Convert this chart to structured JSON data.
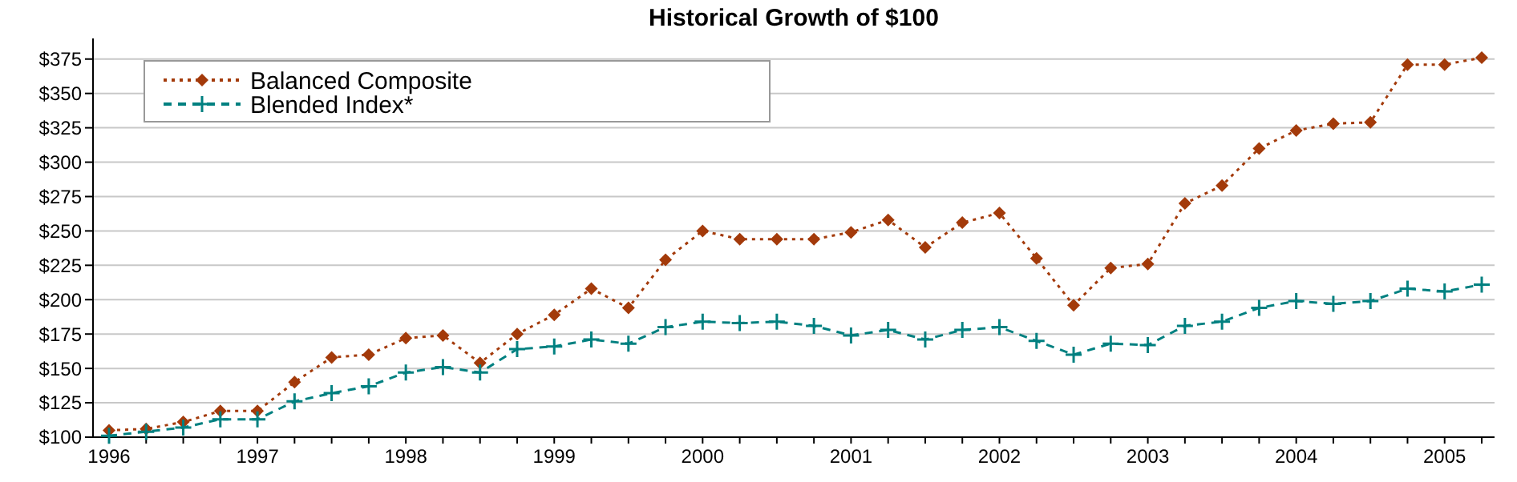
{
  "chart_data": {
    "type": "line",
    "title": "Historical Growth of $100",
    "categories": [
      "1996",
      null,
      null,
      null,
      "1997",
      null,
      null,
      null,
      "1998",
      null,
      null,
      null,
      "1999",
      null,
      null,
      null,
      "2000",
      null,
      null,
      null,
      "2001",
      null,
      null,
      null,
      "2002",
      null,
      null,
      null,
      "2003",
      null,
      null,
      null,
      "2004",
      null,
      null,
      null,
      "2005",
      null
    ],
    "series": [
      {
        "name": "Balanced Composite",
        "color": "#a33a0a",
        "marker": "diamond",
        "line_style": "dotted",
        "values": [
          105,
          106,
          111,
          119,
          119,
          140,
          158,
          160,
          172,
          174,
          154,
          175,
          189,
          208,
          194,
          229,
          250,
          244,
          244,
          244,
          249,
          258,
          238,
          256,
          263,
          230,
          196,
          223,
          226,
          270,
          283,
          310,
          323,
          328,
          329,
          371,
          371,
          376
        ]
      },
      {
        "name": "Blended Index*",
        "color": "#008080",
        "marker": "cross",
        "line_style": "dashed",
        "values": [
          101,
          104,
          107,
          113,
          113,
          126,
          132,
          137,
          147,
          151,
          147,
          164,
          166,
          171,
          168,
          180,
          184,
          183,
          184,
          181,
          174,
          178,
          171,
          178,
          180,
          170,
          160,
          168,
          167,
          181,
          184,
          194,
          199,
          197,
          199,
          208,
          206,
          211
        ]
      }
    ],
    "ylim": [
      100,
      390
    ],
    "yticks": [
      {
        "value": 100,
        "label": "$100"
      },
      {
        "value": 125,
        "label": "$125"
      },
      {
        "value": 150,
        "label": "$150"
      },
      {
        "value": 175,
        "label": "$175"
      },
      {
        "value": 200,
        "label": "$200"
      },
      {
        "value": 225,
        "label": "$225"
      },
      {
        "value": 250,
        "label": "$250"
      },
      {
        "value": 275,
        "label": "$275"
      },
      {
        "value": 300,
        "label": "$300"
      },
      {
        "value": 325,
        "label": "$325"
      },
      {
        "value": 350,
        "label": "$350"
      },
      {
        "value": 375,
        "label": "$375"
      }
    ],
    "grid": "y",
    "legend": "top left"
  }
}
